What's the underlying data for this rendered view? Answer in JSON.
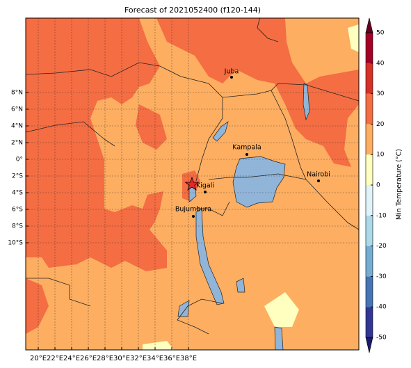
{
  "title": "Forecast of 2021052400 (f120-144)",
  "map": {
    "xticks": [
      {
        "value": 20,
        "label": "20°E"
      },
      {
        "value": 22,
        "label": "22°E"
      },
      {
        "value": 24,
        "label": "24°E"
      },
      {
        "value": 26,
        "label": "26°E"
      },
      {
        "value": 28,
        "label": "28°E"
      },
      {
        "value": 30,
        "label": "30°E"
      },
      {
        "value": 32,
        "label": "32°E"
      },
      {
        "value": 34,
        "label": "34°E"
      },
      {
        "value": 36,
        "label": "36°E"
      },
      {
        "value": 38,
        "label": "38°E"
      }
    ],
    "yticks": [
      {
        "value": 8,
        "label": "8°N"
      },
      {
        "value": 6,
        "label": "6°N"
      },
      {
        "value": 4,
        "label": "4°N"
      },
      {
        "value": 2,
        "label": "2°N"
      },
      {
        "value": 0,
        "label": "0°"
      },
      {
        "value": -2,
        "label": "2°S"
      },
      {
        "value": -4,
        "label": "4°S"
      },
      {
        "value": -6,
        "label": "6°S"
      },
      {
        "value": -8,
        "label": "8°S"
      },
      {
        "value": -10,
        "label": "10°S"
      }
    ],
    "cities": [
      "Juba",
      "Kampala",
      "Nairobi",
      "Kigali",
      "Bujumbura"
    ]
  },
  "colorbar": {
    "label": "Min Temperature (°C)",
    "ticks": [
      -50,
      -40,
      -30,
      -20,
      -10,
      0,
      10,
      20,
      30,
      40,
      50
    ],
    "colors": [
      "#313695",
      "#4575b4",
      "#74add1",
      "#abd9e9",
      "#e0f3f8",
      "#ffffbf",
      "#fdae61",
      "#f46d43",
      "#d73027",
      "#a50026"
    ],
    "under_color": "#1a1a6e",
    "over_color": "#67001f"
  }
}
